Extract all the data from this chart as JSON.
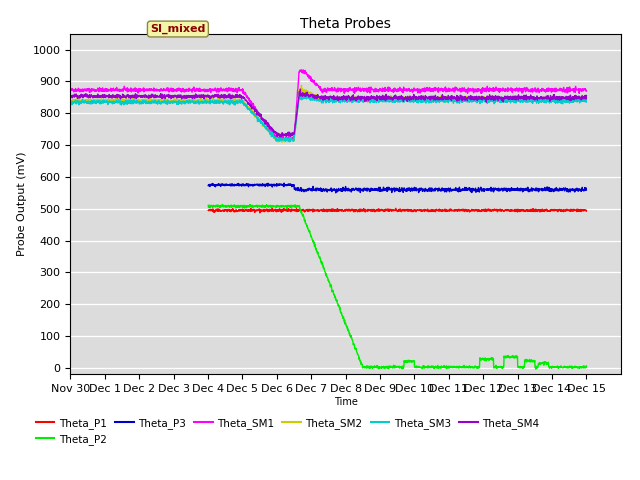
{
  "title": "Theta Probes",
  "xlabel": "Time",
  "ylabel": "Probe Output (mV)",
  "ylim": [
    -20,
    1050
  ],
  "xlim": [
    0,
    16
  ],
  "bg_color": "#dcdcdc",
  "annotation_text": "SI_mixed",
  "annotation_color": "#8b0000",
  "annotation_bg": "#f5f5aa",
  "series": {
    "Theta_P1": {
      "color": "#ff0000",
      "lw": 1.0
    },
    "Theta_P2": {
      "color": "#00ee00",
      "lw": 1.0
    },
    "Theta_P3": {
      "color": "#0000cc",
      "lw": 1.0
    },
    "Theta_SM1": {
      "color": "#ff00ff",
      "lw": 1.0
    },
    "Theta_SM2": {
      "color": "#cccc00",
      "lw": 1.0
    },
    "Theta_SM3": {
      "color": "#00cccc",
      "lw": 1.0
    },
    "Theta_SM4": {
      "color": "#9900cc",
      "lw": 1.0
    }
  },
  "xtick_labels": [
    "Nov 30",
    "Dec 1",
    "Dec 2",
    "Dec 3",
    "Dec 4",
    "Dec 5",
    "Dec 6",
    "Dec 7",
    "Dec 8",
    "Dec 9",
    "Dec 10",
    "Dec 11",
    "Dec 12",
    "Dec 13",
    "Dec 14",
    "Dec 15"
  ],
  "yticks": [
    0,
    100,
    200,
    300,
    400,
    500,
    600,
    700,
    800,
    900,
    1000
  ]
}
